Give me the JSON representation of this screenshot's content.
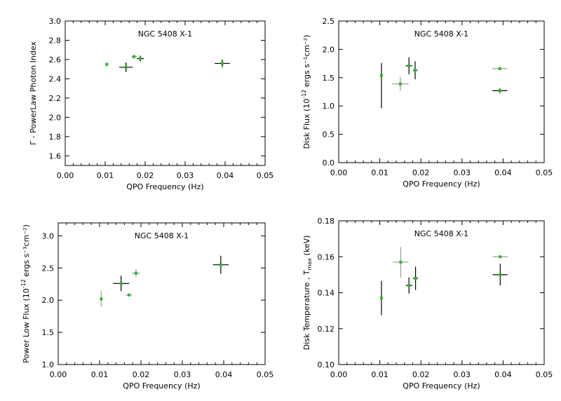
{
  "colors": {
    "axis": "#000000",
    "marker": "#2bb52b",
    "bar": "#000000",
    "bar_light": "#9a9a9a"
  },
  "chart_data": [
    {
      "type": "scatter",
      "title": "NGC 5408 X-1",
      "xlabel": "QPO Frequency (Hz)",
      "ylabel_main": "Γ - PowerLaw Photon Index",
      "ylabel_sup": "",
      "ylabel_end": "",
      "xlim": [
        0.0,
        0.05
      ],
      "ylim": [
        1.5,
        3.0
      ],
      "xticks": [
        "0.00",
        "0.01",
        "0.02",
        "0.03",
        "0.04",
        "0.05"
      ],
      "xtick_values": [
        0.0,
        0.01,
        0.02,
        0.03,
        0.04,
        0.05
      ],
      "yticks": [
        "1.6",
        "1.8",
        "2.0",
        "2.2",
        "2.4",
        "2.6",
        "2.8",
        "3.0"
      ],
      "ytick_values": [
        1.6,
        1.8,
        2.0,
        2.2,
        2.4,
        2.6,
        2.8,
        3.0
      ],
      "points": [
        {
          "x": 0.0104,
          "y": 2.55,
          "xerr": 0.0003,
          "yerr": 0.02,
          "light": true
        },
        {
          "x": 0.0152,
          "y": 2.52,
          "xerr": 0.0017,
          "yerr": 0.05,
          "light": false
        },
        {
          "x": 0.0172,
          "y": 2.63,
          "xerr": 0.0007,
          "yerr": 0.02,
          "light": true
        },
        {
          "x": 0.0188,
          "y": 2.61,
          "xerr": 0.0009,
          "yerr": 0.03,
          "light": false
        },
        {
          "x": 0.0393,
          "y": 2.56,
          "xerr": 0.0019,
          "yerr": 0.04,
          "light": false
        }
      ]
    },
    {
      "type": "scatter",
      "title": "NGC 5408 X-1",
      "xlabel": "QPO Frequency (Hz)",
      "ylabel_main": "Disk Flux (10",
      "ylabel_sup": "-12",
      "ylabel_end": " ergs s⁻¹cm⁻²)",
      "xlim": [
        0.0,
        0.05
      ],
      "ylim": [
        0.0,
        2.5
      ],
      "xticks": [
        "0.00",
        "0.01",
        "0.02",
        "0.03",
        "0.04",
        "0.05"
      ],
      "xtick_values": [
        0.0,
        0.01,
        0.02,
        0.03,
        0.04,
        0.05
      ],
      "yticks": [
        "0.0",
        "0.5",
        "1.0",
        "1.5",
        "2.0",
        "2.5"
      ],
      "ytick_values": [
        0.0,
        0.5,
        1.0,
        1.5,
        2.0,
        2.5
      ],
      "points": [
        {
          "x": 0.0104,
          "y": 1.54,
          "xerr": 0.0003,
          "yerr": 0.22,
          "yerr_lo": 0.58,
          "light": false
        },
        {
          "x": 0.015,
          "y": 1.39,
          "xerr": 0.002,
          "yerr": 0.12,
          "light": true
        },
        {
          "x": 0.0171,
          "y": 1.71,
          "xerr": 0.0008,
          "yerr": 0.15,
          "light": false
        },
        {
          "x": 0.0186,
          "y": 1.63,
          "xerr": 0.0005,
          "yerr": 0.16,
          "light": false
        },
        {
          "x": 0.0392,
          "y": 1.66,
          "xerr": 0.0018,
          "yerr": 0.01,
          "light": true
        },
        {
          "x": 0.0392,
          "y": 1.27,
          "xerr": 0.0018,
          "yerr": 0.04,
          "light": false
        }
      ]
    },
    {
      "type": "scatter",
      "title": "NGC 5408 X-1",
      "xlabel": "QPO Frequency (Hz)",
      "ylabel_main": "Power Low Flux (10",
      "ylabel_sup": "-12",
      "ylabel_end": " ergs s⁻¹cm⁻²)",
      "xlim": [
        0.0,
        0.05
      ],
      "ylim": [
        1.0,
        3.2
      ],
      "xticks": [
        "0.00",
        "0.01",
        "0.02",
        "0.03",
        "0.04",
        "0.05"
      ],
      "xtick_values": [
        0.0,
        0.01,
        0.02,
        0.03,
        0.04,
        0.05
      ],
      "yticks": [
        "1.0",
        "1.5",
        "2.0",
        "2.5",
        "3.0"
      ],
      "ytick_values": [
        1.0,
        1.5,
        2.0,
        2.5,
        3.0
      ],
      "points": [
        {
          "x": 0.0104,
          "y": 2.02,
          "xerr": 0.0003,
          "yerr": 0.12,
          "light": true
        },
        {
          "x": 0.0152,
          "y": 2.26,
          "xerr": 0.002,
          "yerr": 0.12,
          "light": false
        },
        {
          "x": 0.0171,
          "y": 2.08,
          "xerr": 0.0008,
          "yerr": 0.02,
          "light": true
        },
        {
          "x": 0.0188,
          "y": 2.42,
          "xerr": 0.001,
          "yerr": 0.06,
          "light": true
        },
        {
          "x": 0.0393,
          "y": 2.55,
          "xerr": 0.0019,
          "yerr": 0.14,
          "light": false
        }
      ]
    },
    {
      "type": "scatter",
      "title": "NGC 5408 X-1",
      "xlabel": "QPO Frequency (Hz)",
      "ylabel_main": "Disk Temperature , T",
      "ylabel_sub": "max",
      "ylabel_end": " (keV)",
      "xlim": [
        0.0,
        0.05
      ],
      "ylim": [
        0.1,
        0.18
      ],
      "xticks": [
        "0.00",
        "0.01",
        "0.02",
        "0.03",
        "0.04",
        "0.05"
      ],
      "xtick_values": [
        0.0,
        0.01,
        0.02,
        0.03,
        0.04,
        0.05
      ],
      "yticks": [
        "0.10",
        "0.12",
        "0.14",
        "0.16",
        "0.18"
      ],
      "ytick_values": [
        0.1,
        0.12,
        0.14,
        0.16,
        0.18
      ],
      "points": [
        {
          "x": 0.0104,
          "y": 0.137,
          "xerr": 0.0003,
          "yerr": 0.0095,
          "light": false
        },
        {
          "x": 0.0151,
          "y": 0.157,
          "xerr": 0.0019,
          "yerr": 0.0085,
          "light": true
        },
        {
          "x": 0.0171,
          "y": 0.144,
          "xerr": 0.0008,
          "yerr": 0.0045,
          "light": false
        },
        {
          "x": 0.0187,
          "y": 0.148,
          "xerr": 0.0006,
          "yerr": 0.0065,
          "light": false
        },
        {
          "x": 0.0393,
          "y": 0.16,
          "xerr": 0.0018,
          "yerr": 0.0003,
          "light": true
        },
        {
          "x": 0.0393,
          "y": 0.15,
          "xerr": 0.0018,
          "yerr": 0.006,
          "light": false
        }
      ]
    }
  ]
}
